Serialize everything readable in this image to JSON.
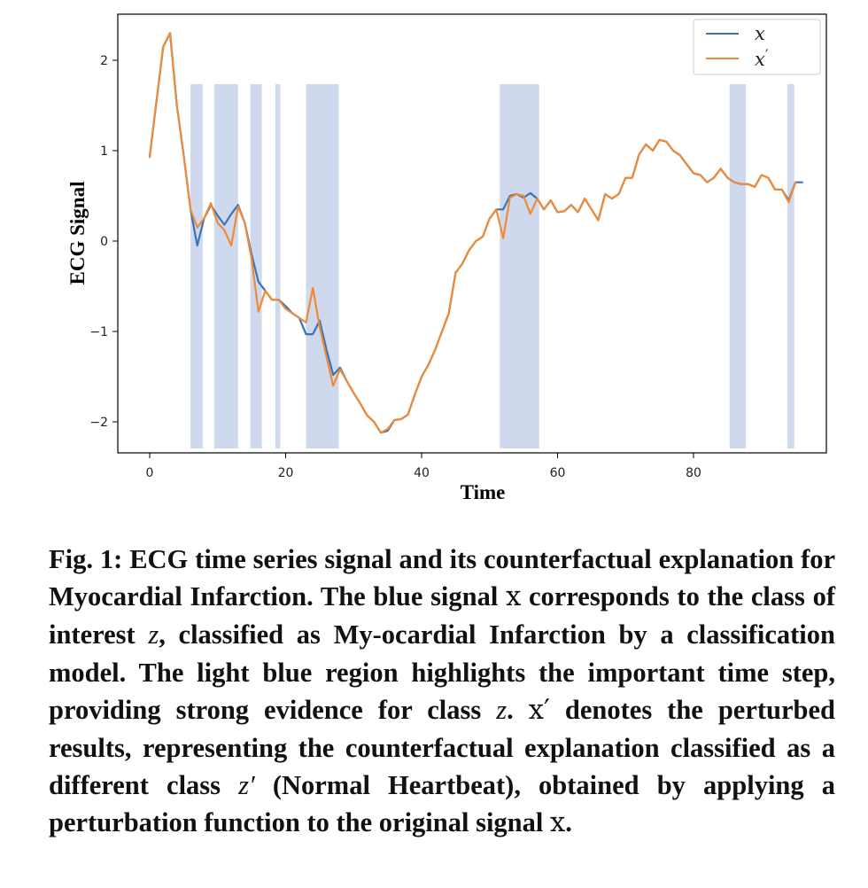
{
  "chart_data": {
    "type": "line",
    "xlabel": "Time",
    "ylabel": "ECG Signal",
    "xlim": [
      -5,
      99
    ],
    "ylim": [
      -2.35,
      2.55
    ],
    "xticks": [
      0,
      20,
      40,
      60,
      80
    ],
    "yticks": [
      -2,
      -1,
      0,
      1,
      2
    ],
    "ytick_labels": [
      "−2",
      "−1",
      "0",
      "1",
      "2"
    ],
    "grid": false,
    "legend_position": "top-right",
    "highlight_color": "#ccd7ec",
    "highlight_regions": [
      [
        6,
        7.8
      ],
      [
        9.5,
        13
      ],
      [
        14.8,
        16.5
      ],
      [
        18.5,
        19.2
      ],
      [
        23,
        27.8
      ],
      [
        51.5,
        57.3
      ],
      [
        85.3,
        87.7
      ],
      [
        93.8,
        94.8
      ]
    ],
    "series": [
      {
        "name": "x",
        "color": "#3a74b4",
        "values": [
          0.93,
          1.55,
          2.15,
          2.3,
          1.5,
          0.95,
          0.35,
          -0.05,
          0.25,
          0.4,
          0.28,
          0.18,
          0.3,
          0.4,
          0.2,
          -0.15,
          -0.45,
          -0.55,
          -0.65,
          -0.65,
          -0.72,
          -0.8,
          -0.85,
          -1.03,
          -1.03,
          -0.88,
          -1.2,
          -1.48,
          -1.4,
          -1.55,
          -1.68,
          -1.8,
          -1.93,
          -2.0,
          -2.12,
          -2.1,
          -1.98,
          -1.97,
          -1.92,
          -1.7,
          -1.5,
          -1.37,
          -1.2,
          -1.0,
          -0.8,
          -0.35,
          -0.25,
          -0.1,
          0.0,
          0.05,
          0.25,
          0.35,
          0.35,
          0.5,
          0.52,
          0.48,
          0.53,
          0.47,
          0.35,
          0.45,
          0.32,
          0.33,
          0.4,
          0.32,
          0.47,
          0.35,
          0.23,
          0.52,
          0.47,
          0.52,
          0.7,
          0.7,
          0.96,
          1.07,
          1.0,
          1.12,
          1.1,
          1.0,
          0.95,
          0.85,
          0.75,
          0.73,
          0.65,
          0.7,
          0.8,
          0.7,
          0.65,
          0.63,
          0.63,
          0.6,
          0.73,
          0.7,
          0.57,
          0.57,
          0.45,
          0.65,
          0.65
        ],
        "n_points": 97
      },
      {
        "name": "x′",
        "color": "#ef8a36",
        "values": [
          0.93,
          1.55,
          2.15,
          2.3,
          1.5,
          0.95,
          0.35,
          0.15,
          0.25,
          0.42,
          0.2,
          0.12,
          -0.05,
          0.38,
          0.2,
          -0.2,
          -0.78,
          -0.55,
          -0.65,
          -0.65,
          -0.75,
          -0.8,
          -0.85,
          -0.9,
          -0.52,
          -0.95,
          -1.28,
          -1.6,
          -1.42,
          -1.55,
          -1.68,
          -1.8,
          -1.93,
          -2.0,
          -2.12,
          -2.08,
          -1.98,
          -1.97,
          -1.92,
          -1.7,
          -1.5,
          -1.37,
          -1.2,
          -1.0,
          -0.8,
          -0.35,
          -0.25,
          -0.1,
          0.0,
          0.05,
          0.25,
          0.35,
          0.03,
          0.48,
          0.52,
          0.5,
          0.3,
          0.47,
          0.35,
          0.45,
          0.32,
          0.33,
          0.4,
          0.32,
          0.47,
          0.35,
          0.23,
          0.52,
          0.47,
          0.52,
          0.7,
          0.7,
          0.96,
          1.07,
          1.0,
          1.12,
          1.1,
          1.0,
          0.95,
          0.85,
          0.75,
          0.73,
          0.65,
          0.7,
          0.8,
          0.7,
          0.65,
          0.63,
          0.63,
          0.6,
          0.73,
          0.7,
          0.57,
          0.57,
          0.43,
          0.65
        ],
        "n_points": 96
      }
    ]
  },
  "legend": {
    "items": [
      {
        "label": "x",
        "prime": false,
        "color": "#3a74b4"
      },
      {
        "label": "x",
        "prime": true,
        "color": "#ef8a36"
      }
    ]
  },
  "caption": {
    "label": "Fig. 1:",
    "parts": [
      " ECG time series signal and its counterfactual explanation for Myocardial Infarction. The blue signal ",
      "x",
      " corresponds to the class of interest ",
      "z",
      ", classified as My-ocardial Infarction by a classification model. The light blue region highlights the important time step, providing strong evidence for class ",
      "z",
      ". ",
      "x′",
      " denotes the perturbed results, representing the counterfactual explanation classified as a different class ",
      "z′",
      " (Normal Heartbeat), obtained by applying a perturbation function to the original signal ",
      "x",
      "."
    ]
  }
}
